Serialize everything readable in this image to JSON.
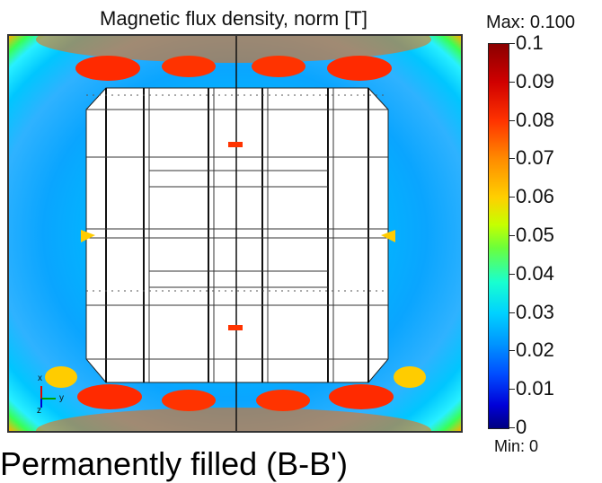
{
  "plot": {
    "title": "Magnetic flux density, norm [T]",
    "axis_triad": {
      "x": "x",
      "y": "y",
      "z": "z"
    }
  },
  "colorbar": {
    "max_label": "Max: 0.100",
    "min_label": "Min: 0",
    "ticks": [
      "0.1",
      "0.09",
      "0.08",
      "0.07",
      "0.06",
      "0.05",
      "0.04",
      "0.03",
      "0.02",
      "0.01",
      "0"
    ],
    "colors": {
      "top": "#8b0000",
      "mid": "#c6ff00",
      "bottom": "#000080"
    }
  },
  "caption": "Permanently filled (B-B')"
}
